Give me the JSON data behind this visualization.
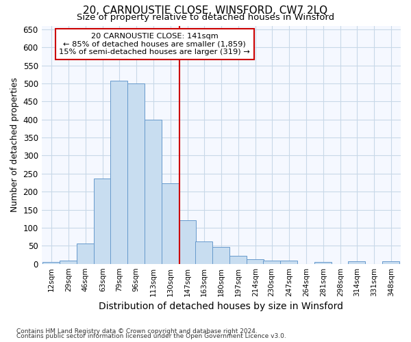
{
  "title": "20, CARNOUSTIE CLOSE, WINSFORD, CW7 2LQ",
  "subtitle": "Size of property relative to detached houses in Winsford",
  "xlabel": "Distribution of detached houses by size in Winsford",
  "ylabel": "Number of detached properties",
  "footnote1": "Contains HM Land Registry data © Crown copyright and database right 2024.",
  "footnote2": "Contains public sector information licensed under the Open Government Licence v3.0.",
  "bar_labels": [
    "12sqm",
    "29sqm",
    "46sqm",
    "63sqm",
    "79sqm",
    "96sqm",
    "113sqm",
    "130sqm",
    "147sqm",
    "163sqm",
    "180sqm",
    "197sqm",
    "214sqm",
    "230sqm",
    "247sqm",
    "264sqm",
    "281sqm",
    "298sqm",
    "314sqm",
    "331sqm",
    "348sqm"
  ],
  "bar_values": [
    5,
    8,
    57,
    236,
    507,
    500,
    400,
    224,
    120,
    62,
    46,
    22,
    13,
    8,
    8,
    0,
    5,
    0,
    7,
    0,
    7
  ],
  "bar_color": "#c8ddf0",
  "bar_edgecolor": "#6699cc",
  "vline_x_idx": 8,
  "annotation_line1": "20 CARNOUSTIE CLOSE: 141sqm",
  "annotation_line2": "← 85% of detached houses are smaller (1,859)",
  "annotation_line3": "15% of semi-detached houses are larger (319) →",
  "annotation_box_color": "#cc0000",
  "ylim": [
    0,
    660
  ],
  "yticks": [
    0,
    50,
    100,
    150,
    200,
    250,
    300,
    350,
    400,
    450,
    500,
    550,
    600,
    650
  ],
  "background_color": "#ffffff",
  "plot_bg_color": "#f5f8ff",
  "grid_color": "#c8d8e8",
  "title_fontsize": 11,
  "subtitle_fontsize": 9.5,
  "ylabel_fontsize": 9,
  "xlabel_fontsize": 10
}
